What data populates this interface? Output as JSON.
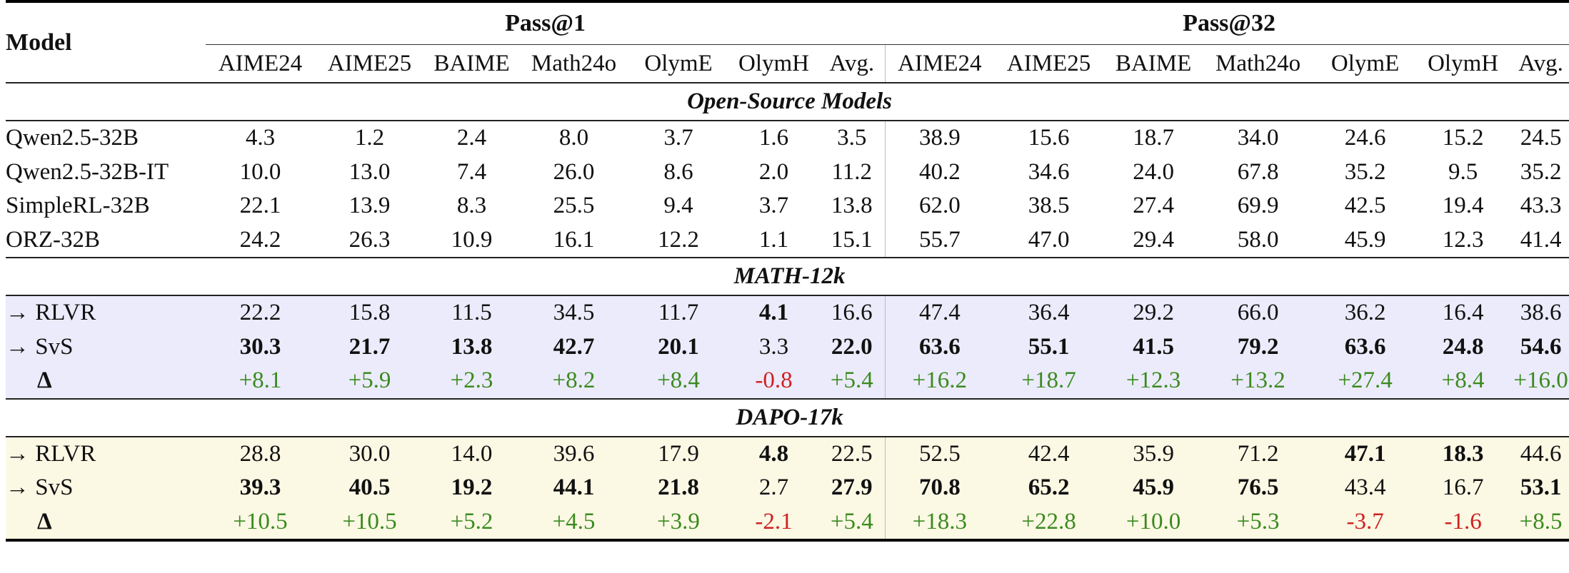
{
  "table": {
    "model_header": "Model",
    "group_headers": [
      "Pass@1",
      "Pass@32"
    ],
    "columns": [
      "AIME24",
      "AIME25",
      "BAIME",
      "Math24o",
      "OlymE",
      "OlymH",
      "Avg.",
      "AIME24",
      "AIME25",
      "BAIME",
      "Math24o",
      "OlymE",
      "OlymH",
      "Avg."
    ],
    "sections": [
      {
        "title": "Open-Source Models",
        "rows": [
          {
            "name": "Qwen2.5-32B",
            "values": [
              "4.3",
              "1.2",
              "2.4",
              "8.0",
              "3.7",
              "1.6",
              "3.5",
              "38.9",
              "15.6",
              "18.7",
              "34.0",
              "24.6",
              "15.2",
              "24.5"
            ]
          },
          {
            "name": "Qwen2.5-32B-IT",
            "values": [
              "10.0",
              "13.0",
              "7.4",
              "26.0",
              "8.6",
              "2.0",
              "11.2",
              "40.2",
              "34.6",
              "24.0",
              "67.8",
              "35.2",
              "9.5",
              "35.2"
            ]
          },
          {
            "name": "SimpleRL-32B",
            "values": [
              "22.1",
              "13.9",
              "8.3",
              "25.5",
              "9.4",
              "3.7",
              "13.8",
              "62.0",
              "38.5",
              "27.4",
              "69.9",
              "42.5",
              "19.4",
              "43.3"
            ]
          },
          {
            "name": "ORZ-32B",
            "values": [
              "24.2",
              "26.3",
              "10.9",
              "16.1",
              "12.2",
              "1.1",
              "15.1",
              "55.7",
              "47.0",
              "29.4",
              "58.0",
              "45.9",
              "12.3",
              "41.4"
            ]
          }
        ]
      },
      {
        "title": "MATH-12k",
        "rows": [
          {
            "name": "→ RLVR",
            "values": [
              "22.2",
              "15.8",
              "11.5",
              "34.5",
              "11.7",
              "4.1",
              "16.6",
              "47.4",
              "36.4",
              "29.2",
              "66.0",
              "36.2",
              "16.4",
              "38.6"
            ]
          },
          {
            "name": "→ SvS",
            "values": [
              "30.3",
              "21.7",
              "13.8",
              "42.7",
              "20.1",
              "3.3",
              "22.0",
              "63.6",
              "55.1",
              "41.5",
              "79.2",
              "63.6",
              "24.8",
              "54.6"
            ]
          },
          {
            "name": "Δ",
            "values": [
              "+8.1",
              "+5.9",
              "+2.3",
              "+8.2",
              "+8.4",
              "-0.8",
              "+5.4",
              "+16.2",
              "+18.7",
              "+12.3",
              "+13.2",
              "+27.4",
              "+8.4",
              "+16.0"
            ]
          }
        ]
      },
      {
        "title": "DAPO-17k",
        "rows": [
          {
            "name": "→ RLVR",
            "values": [
              "28.8",
              "30.0",
              "14.0",
              "39.6",
              "17.9",
              "4.8",
              "22.5",
              "52.5",
              "42.4",
              "35.9",
              "71.2",
              "47.1",
              "18.3",
              "44.6"
            ]
          },
          {
            "name": "→ SvS",
            "values": [
              "39.3",
              "40.5",
              "19.2",
              "44.1",
              "21.8",
              "2.7",
              "27.9",
              "70.8",
              "65.2",
              "45.9",
              "76.5",
              "43.4",
              "16.7",
              "53.1"
            ]
          },
          {
            "name": "Δ",
            "values": [
              "+10.5",
              "+10.5",
              "+5.2",
              "+4.5",
              "+3.9",
              "-2.1",
              "+5.4",
              "+18.3",
              "+22.8",
              "+10.0",
              "+5.3",
              "-3.7",
              "-1.6",
              "+8.5"
            ]
          }
        ]
      }
    ]
  },
  "colors": {
    "positive_delta": "#3a8a1e",
    "negative_delta": "#d02020",
    "math_section_bg": "#ebebfb",
    "dapo_section_bg": "#fbf8e4"
  }
}
